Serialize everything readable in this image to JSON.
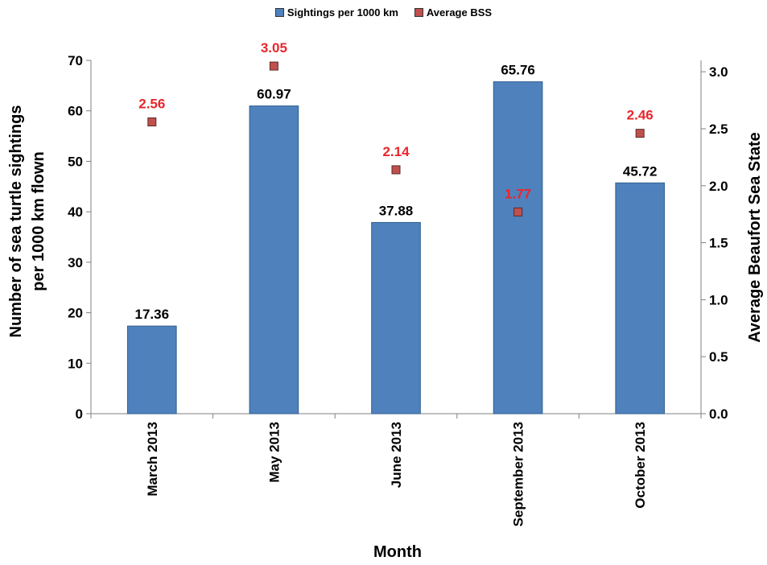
{
  "chart_data": {
    "type": "bar",
    "categories": [
      "March 2013",
      "May 2013",
      "June 2013",
      "September 2013",
      "October 2013"
    ],
    "series": [
      {
        "name": "Sightings per 1000 km",
        "kind": "bar",
        "axis": "left",
        "color": "#4F81BD",
        "values": [
          17.36,
          60.97,
          37.88,
          65.76,
          45.72
        ],
        "labels": [
          "17.36",
          "60.97",
          "37.88",
          "65.76",
          "45.72"
        ]
      },
      {
        "name": "Average BSS",
        "kind": "scatter",
        "axis": "right",
        "color": "#C0504D",
        "label_color": "#E8262B",
        "values": [
          2.56,
          3.05,
          2.14,
          1.77,
          2.46
        ],
        "labels": [
          "2.56",
          "3.05",
          "2.14",
          "1.77",
          "2.46"
        ]
      }
    ],
    "xlabel": "Month",
    "ylabel_lines": [
      "Number of sea turtle sightings",
      "per 1000 km flown"
    ],
    "y2label": "Average Beaufort Sea State",
    "ylim": [
      0,
      70
    ],
    "y_ticks": [
      "0",
      "10",
      "20",
      "30",
      "40",
      "50",
      "60",
      "70"
    ],
    "y2lim": [
      0,
      3.1
    ],
    "y2_ticks": [
      "0.0",
      "0.5",
      "1.0",
      "1.5",
      "2.0",
      "2.5",
      "3.0"
    ],
    "grid": false,
    "legend_position": "top-center"
  }
}
